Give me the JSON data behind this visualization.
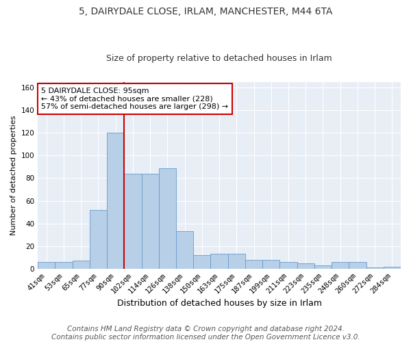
{
  "title1": "5, DAIRYDALE CLOSE, IRLAM, MANCHESTER, M44 6TA",
  "title2": "Size of property relative to detached houses in Irlam",
  "xlabel": "Distribution of detached houses by size in Irlam",
  "ylabel": "Number of detached properties",
  "categories": [
    "41sqm",
    "53sqm",
    "65sqm",
    "77sqm",
    "90sqm",
    "102sqm",
    "114sqm",
    "126sqm",
    "138sqm",
    "150sqm",
    "163sqm",
    "175sqm",
    "187sqm",
    "199sqm",
    "211sqm",
    "223sqm",
    "235sqm",
    "248sqm",
    "260sqm",
    "272sqm",
    "284sqm"
  ],
  "values": [
    6,
    6,
    7,
    52,
    120,
    84,
    84,
    89,
    33,
    12,
    13,
    13,
    8,
    8,
    6,
    5,
    3,
    6,
    6,
    1,
    2
  ],
  "bar_color": "#b8cfe8",
  "bar_edge_color": "#6699cc",
  "vline_x": 4.5,
  "vline_color": "#cc0000",
  "annotation_text": "5 DAIRYDALE CLOSE: 95sqm\n← 43% of detached houses are smaller (228)\n57% of semi-detached houses are larger (298) →",
  "annotation_box_color": "#ffffff",
  "annotation_box_edge": "#cc0000",
  "ylim": [
    0,
    165
  ],
  "yticks": [
    0,
    20,
    40,
    60,
    80,
    100,
    120,
    140,
    160
  ],
  "footer1": "Contains HM Land Registry data © Crown copyright and database right 2024.",
  "footer2": "Contains public sector information licensed under the Open Government Licence v3.0.",
  "background_color": "#ffffff",
  "plot_bg_color": "#e8eef5",
  "grid_color": "#ffffff",
  "title1_fontsize": 10,
  "title2_fontsize": 9,
  "xlabel_fontsize": 9,
  "ylabel_fontsize": 8,
  "tick_fontsize": 7.5,
  "footer_fontsize": 7.5,
  "annot_fontsize": 8
}
